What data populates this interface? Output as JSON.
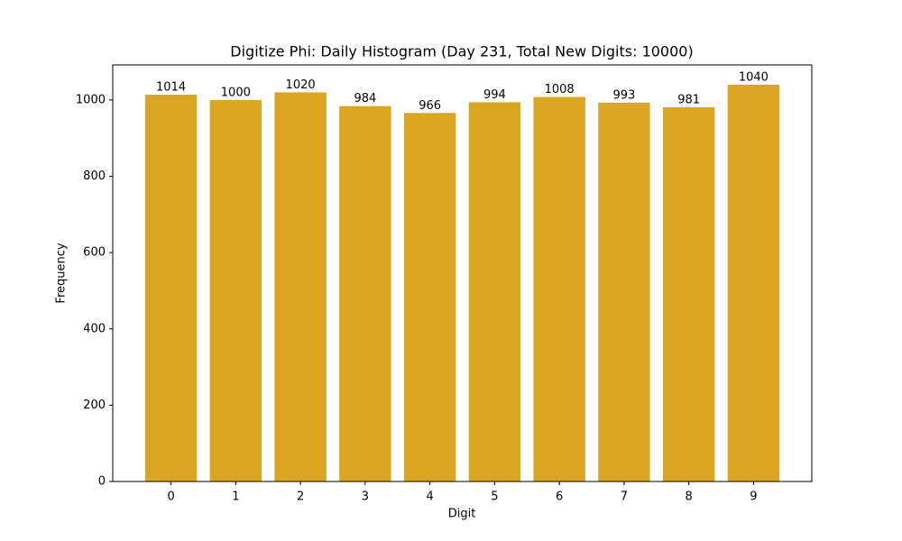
{
  "chart_data": {
    "type": "bar",
    "title": "Digitize Phi: Daily Histogram (Day 231, Total New Digits: 10000)",
    "x_label": "Digit",
    "y_label": "Frequency",
    "categories": [
      "0",
      "1",
      "2",
      "3",
      "4",
      "5",
      "6",
      "7",
      "8",
      "9"
    ],
    "values": [
      1014,
      1000,
      1020,
      984,
      966,
      994,
      1008,
      993,
      981,
      1040
    ],
    "color": "#daa520",
    "ylim": [
      0,
      1092
    ],
    "yticks": [
      0,
      200,
      400,
      600,
      800,
      1000
    ],
    "grid": false,
    "value_labels_shown": true
  }
}
